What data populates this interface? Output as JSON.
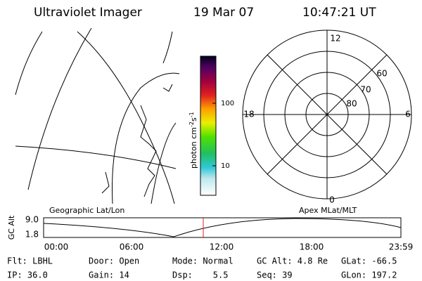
{
  "header": {
    "title": "Ultraviolet Imager",
    "date": "19 Mar 07",
    "time": "10:47:21 UT"
  },
  "colorbar": {
    "label": "photon cm",
    "label_exp1": "-2",
    "label_mid": "s",
    "label_exp2": "-1",
    "ticks": [
      "100",
      "10"
    ]
  },
  "polar": {
    "labels": [
      "12",
      "6",
      "18",
      "0",
      "60",
      "70",
      "80"
    ]
  },
  "timeline": {
    "left_label": "Geographic Lat/Lon",
    "right_label": "Apex MLat/MLT",
    "axis_label": "GC Alt",
    "yticks": [
      "9.0",
      "1.8"
    ],
    "xticks": [
      "00:00",
      "06:00",
      "12:00",
      "18:00",
      "23:59"
    ]
  },
  "footer": {
    "rows": [
      [
        "Flt: LBHL",
        "Door: Open",
        "Mode: Normal",
        "GC Alt: 4.8 Re",
        "GLat: -66.5"
      ],
      [
        "IP: 36.0",
        "Gain: 14",
        "Dsp:    5.5",
        "Seq: 39",
        "GLon: 197.2"
      ]
    ]
  }
}
